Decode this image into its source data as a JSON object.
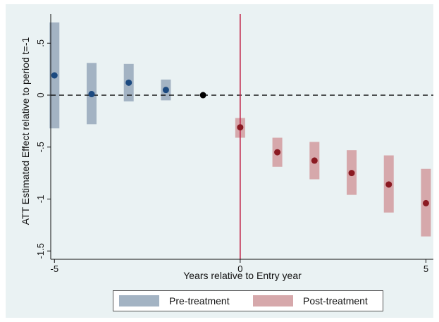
{
  "chart_data": {
    "type": "scatter",
    "title": "",
    "xlabel": "Years relative to Entry year",
    "ylabel": "ATT Estimated Effect relative to period t=-1",
    "xlim": [
      -5.1,
      5.2
    ],
    "ylim": [
      -1.58,
      0.78
    ],
    "x_ticks": [
      -5,
      0,
      5
    ],
    "x_tick_labels": [
      "-5",
      "0",
      "5"
    ],
    "y_ticks": [
      -1.5,
      -1,
      -0.5,
      0,
      0.5
    ],
    "y_tick_labels": [
      "-1.5",
      "-1",
      "-.5",
      "0",
      ".5"
    ],
    "reference_lines": {
      "hline_y": 0,
      "vline_x": 0
    },
    "grid": false,
    "legend_position": "bottom",
    "reference_point": {
      "x": -1,
      "y": 0
    },
    "series": [
      {
        "name": "Pre-treatment",
        "color": "#1c4a80",
        "ci_color": "#a3b3c3",
        "points": [
          {
            "x": -5,
            "y": 0.19,
            "lo": -0.32,
            "hi": 0.7
          },
          {
            "x": -4,
            "y": 0.01,
            "lo": -0.28,
            "hi": 0.31
          },
          {
            "x": -3,
            "y": 0.12,
            "lo": -0.06,
            "hi": 0.3
          },
          {
            "x": -2,
            "y": 0.05,
            "lo": -0.05,
            "hi": 0.15
          }
        ]
      },
      {
        "name": "Post-treatment",
        "color": "#8b1a22",
        "ci_color": "#d6a8ab",
        "points": [
          {
            "x": 0,
            "y": -0.31,
            "lo": -0.41,
            "hi": -0.22
          },
          {
            "x": 1,
            "y": -0.55,
            "lo": -0.69,
            "hi": -0.41
          },
          {
            "x": 2,
            "y": -0.63,
            "lo": -0.81,
            "hi": -0.45
          },
          {
            "x": 3,
            "y": -0.75,
            "lo": -0.96,
            "hi": -0.53
          },
          {
            "x": 4,
            "y": -0.86,
            "lo": -1.13,
            "hi": -0.58
          },
          {
            "x": 5,
            "y": -1.04,
            "lo": -1.36,
            "hi": -0.71
          }
        ]
      }
    ],
    "colors": {
      "background": "#eaf2f3",
      "vline": "#c0264a",
      "reference_point": "#000000"
    }
  }
}
